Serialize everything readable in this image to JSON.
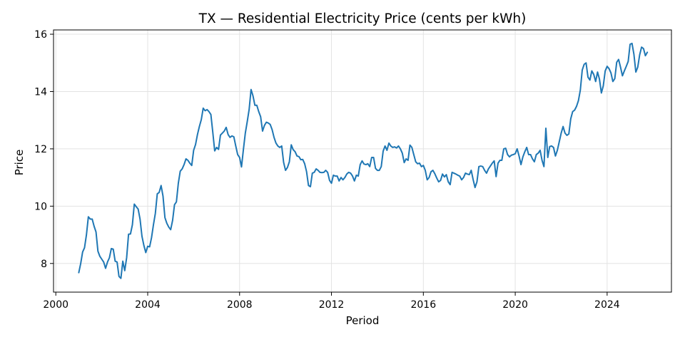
{
  "chart_data": {
    "type": "line",
    "title": "TX — Residential Electricity Price (cents per kWh)",
    "xlabel": "Period",
    "ylabel": "Price",
    "xlim": [
      1999.9,
      2026.8
    ],
    "ylim": [
      7.0,
      16.15
    ],
    "grid": true,
    "legend": "none",
    "x_ticks": [
      2000,
      2004,
      2008,
      2012,
      2016,
      2020,
      2024
    ],
    "x_tick_labels": [
      "2000",
      "2004",
      "2008",
      "2012",
      "2016",
      "2020",
      "2024"
    ],
    "y_ticks": [
      8,
      10,
      12,
      14,
      16
    ],
    "y_tick_labels": [
      "8",
      "10",
      "12",
      "14",
      "16"
    ],
    "series": [
      {
        "color": "#1f77b4",
        "x_start": 2001.0,
        "x_step": 0.083333,
        "values": [
          7.68,
          8.0,
          8.4,
          8.55,
          9.0,
          9.63,
          9.55,
          9.55,
          9.3,
          9.1,
          8.43,
          8.25,
          8.15,
          8.05,
          7.83,
          8.05,
          8.2,
          8.52,
          8.5,
          8.08,
          8.05,
          7.55,
          7.48,
          8.08,
          7.75,
          8.2,
          9.02,
          9.03,
          9.35,
          10.07,
          9.98,
          9.9,
          9.55,
          8.95,
          8.63,
          8.38,
          8.6,
          8.58,
          8.9,
          9.35,
          9.75,
          10.43,
          10.48,
          10.72,
          10.35,
          9.6,
          9.4,
          9.27,
          9.18,
          9.5,
          10.05,
          10.15,
          10.8,
          11.22,
          11.3,
          11.45,
          11.65,
          11.6,
          11.5,
          11.42,
          11.95,
          12.15,
          12.5,
          12.78,
          13.02,
          13.42,
          13.33,
          13.37,
          13.3,
          13.2,
          12.58,
          11.93,
          12.05,
          11.98,
          12.48,
          12.55,
          12.62,
          12.75,
          12.5,
          12.4,
          12.45,
          12.42,
          12.1,
          11.8,
          11.7,
          11.37,
          11.98,
          12.55,
          12.95,
          13.38,
          14.07,
          13.85,
          13.52,
          13.52,
          13.3,
          13.12,
          12.62,
          12.82,
          12.93,
          12.9,
          12.85,
          12.67,
          12.4,
          12.2,
          12.1,
          12.05,
          12.1,
          11.53,
          11.25,
          11.35,
          11.55,
          12.14,
          11.97,
          11.9,
          11.75,
          11.73,
          11.62,
          11.63,
          11.48,
          11.2,
          10.72,
          10.68,
          11.15,
          11.18,
          11.3,
          11.25,
          11.18,
          11.17,
          11.18,
          11.25,
          11.18,
          10.9,
          10.8,
          11.08,
          11.05,
          11.05,
          10.88,
          11.0,
          10.92,
          11.0,
          11.12,
          11.18,
          11.15,
          11.05,
          10.88,
          11.08,
          11.05,
          11.45,
          11.58,
          11.47,
          11.45,
          11.48,
          11.38,
          11.7,
          11.7,
          11.32,
          11.25,
          11.25,
          11.38,
          11.92,
          12.1,
          11.95,
          12.2,
          12.1,
          12.05,
          12.07,
          12.03,
          12.1,
          12.0,
          11.85,
          11.52,
          11.65,
          11.6,
          12.13,
          12.05,
          11.8,
          11.55,
          11.48,
          11.5,
          11.38,
          11.42,
          11.25,
          10.92,
          11.0,
          11.2,
          11.25,
          11.13,
          10.98,
          10.85,
          10.9,
          11.12,
          11.02,
          11.1,
          10.85,
          10.75,
          11.18,
          11.15,
          11.12,
          11.08,
          11.05,
          10.92,
          11.0,
          11.15,
          11.12,
          11.1,
          11.25,
          10.93,
          10.65,
          10.85,
          11.38,
          11.4,
          11.38,
          11.25,
          11.15,
          11.3,
          11.4,
          11.5,
          11.58,
          11.03,
          11.5,
          11.6,
          11.6,
          12.0,
          12.02,
          11.8,
          11.72,
          11.78,
          11.8,
          11.83,
          12.0,
          11.75,
          11.45,
          11.72,
          11.9,
          12.05,
          11.8,
          11.8,
          11.65,
          11.55,
          11.8,
          11.85,
          11.95,
          11.6,
          11.38,
          12.72,
          11.7,
          12.08,
          12.1,
          12.05,
          11.75,
          11.95,
          12.25,
          12.55,
          12.78,
          12.55,
          12.47,
          12.52,
          13.05,
          13.3,
          13.35,
          13.48,
          13.68,
          14.05,
          14.75,
          14.95,
          15.0,
          14.5,
          14.4,
          14.72,
          14.6,
          14.35,
          14.68,
          14.43,
          13.95,
          14.2,
          14.72,
          14.88,
          14.8,
          14.65,
          14.35,
          14.45,
          15.02,
          15.12,
          14.85,
          14.55,
          14.72,
          14.88,
          15.05,
          15.65,
          15.68,
          15.3,
          14.68,
          14.85,
          15.28,
          15.55,
          15.5,
          15.25,
          15.37
        ]
      }
    ]
  }
}
